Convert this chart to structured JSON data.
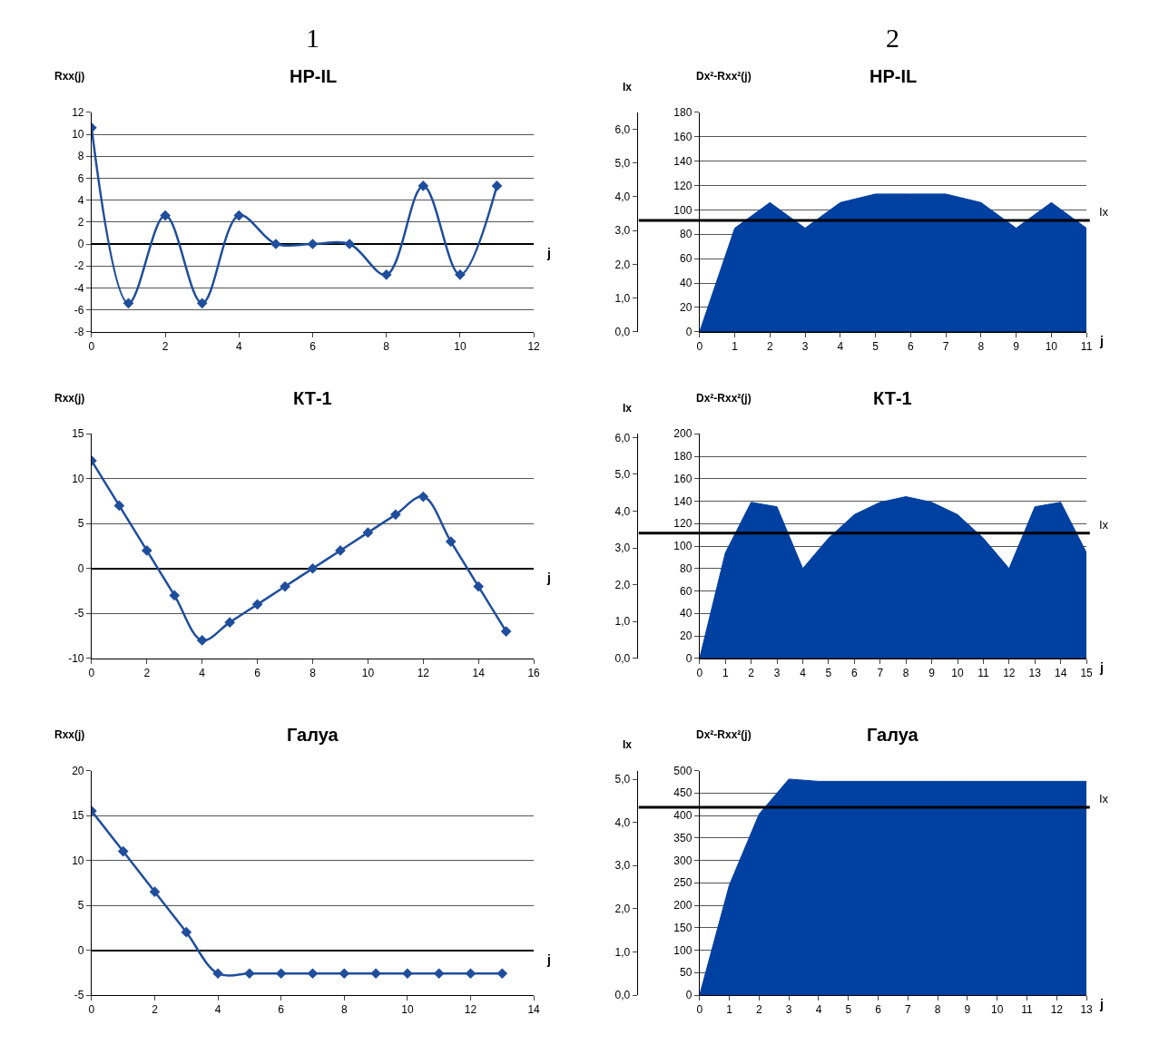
{
  "chart_data": [
    {
      "type": "line",
      "title": "HP-IL",
      "xlabel": "j",
      "ylabel": "Rxx(j)",
      "annotations": [
        "1"
      ],
      "x": [
        0,
        1,
        2,
        3,
        4,
        5,
        6,
        7,
        8,
        9,
        10,
        11
      ],
      "series": [
        {
          "color": "#1f4e9c",
          "values": [
            10.6,
            -5.4,
            2.6,
            -5.4,
            2.6,
            0,
            0,
            0,
            -2.8,
            5.3,
            -2.8,
            5.3
          ]
        }
      ],
      "xlim": [
        0,
        12
      ],
      "xticks": [
        0,
        2,
        4,
        6,
        8,
        10,
        12
      ],
      "ylim": [
        -8,
        12
      ],
      "yticks": [
        -8,
        -6,
        -4,
        -2,
        0,
        2,
        4,
        6,
        8,
        10,
        12
      ],
      "grid": "y",
      "marker": "diamond",
      "line_style": "solid"
    },
    {
      "type": "area",
      "title": "HP-IL",
      "xlabel": "j",
      "ylabel": "Dx²-Rxx²(j)",
      "y2label": "Ix",
      "annotations": [
        "2"
      ],
      "x": [
        0,
        1,
        2,
        3,
        4,
        5,
        6,
        7,
        8,
        9,
        10,
        11
      ],
      "series": [
        {
          "color": "#0040a0",
          "values": [
            0,
            85,
            106,
            85,
            106,
            113,
            113,
            113,
            106,
            85,
            106,
            85
          ]
        }
      ],
      "xlim": [
        0,
        11
      ],
      "xticks": [
        0,
        1,
        2,
        3,
        4,
        5,
        6,
        7,
        8,
        9,
        10,
        11
      ],
      "ylim": [
        0,
        180
      ],
      "yticks": [
        0,
        20,
        40,
        60,
        80,
        100,
        120,
        140,
        160,
        180
      ],
      "y2lim": [
        0,
        6.5
      ],
      "y2ticks": [
        {
          "value": 0,
          "label": "0,0"
        },
        {
          "value": 1,
          "label": "1,0"
        },
        {
          "value": 2,
          "label": "2,0"
        },
        {
          "value": 3,
          "label": "3,0"
        },
        {
          "value": 4,
          "label": "4,0"
        },
        {
          "value": 5,
          "label": "5,0"
        },
        {
          "value": 6,
          "label": "6,0"
        }
      ],
      "ref_lines": [
        {
          "axis": "y2",
          "value": 3.3,
          "label": "Ix",
          "color": "#000000"
        }
      ],
      "grid": "y"
    },
    {
      "type": "line",
      "title": "КТ-1",
      "xlabel": "j",
      "ylabel": "Rxx(j)",
      "x": [
        0,
        1,
        2,
        3,
        4,
        5,
        6,
        7,
        8,
        9,
        10,
        11,
        12,
        13,
        14,
        15
      ],
      "series": [
        {
          "color": "#1f4e9c",
          "values": [
            12,
            7,
            2,
            -3,
            -8,
            -6,
            -4,
            -2,
            0,
            2,
            4,
            6,
            8,
            3,
            -2,
            -7
          ]
        }
      ],
      "xlim": [
        0,
        16
      ],
      "xticks": [
        0,
        2,
        4,
        6,
        8,
        10,
        12,
        14,
        16
      ],
      "ylim": [
        -10,
        15
      ],
      "yticks": [
        -10,
        -5,
        0,
        5,
        10,
        15
      ],
      "grid": "y",
      "marker": "diamond",
      "line_style": "solid"
    },
    {
      "type": "area",
      "title": "КТ-1",
      "xlabel": "j",
      "ylabel": "Dx²-Rxx²(j)",
      "y2label": "Ix",
      "x": [
        0,
        1,
        2,
        3,
        4,
        5,
        6,
        7,
        8,
        9,
        10,
        11,
        12,
        13,
        14,
        15
      ],
      "series": [
        {
          "color": "#0040a0",
          "values": [
            0,
            94,
            139,
            135,
            80,
            107,
            128,
            139,
            144,
            139,
            128,
            107,
            80,
            135,
            139,
            94
          ]
        }
      ],
      "xlim": [
        0,
        15
      ],
      "xticks": [
        0,
        1,
        2,
        3,
        4,
        5,
        6,
        7,
        8,
        9,
        10,
        11,
        12,
        13,
        14,
        15
      ],
      "ylim": [
        0,
        200
      ],
      "yticks": [
        0,
        20,
        40,
        60,
        80,
        100,
        120,
        140,
        160,
        180,
        200
      ],
      "y2lim": [
        0,
        6.1
      ],
      "y2ticks": [
        {
          "value": 0,
          "label": "0,0"
        },
        {
          "value": 1,
          "label": "1,0"
        },
        {
          "value": 2,
          "label": "2,0"
        },
        {
          "value": 3,
          "label": "3,0"
        },
        {
          "value": 4,
          "label": "4,0"
        },
        {
          "value": 5,
          "label": "5,0"
        },
        {
          "value": 6,
          "label": "6,0"
        }
      ],
      "ref_lines": [
        {
          "axis": "y2",
          "value": 3.4,
          "label": "Ix",
          "color": "#000000"
        }
      ],
      "grid": "y"
    },
    {
      "type": "line",
      "title": "Галуа",
      "xlabel": "j",
      "ylabel": "Rxx(j)",
      "x": [
        0,
        1,
        2,
        3,
        4,
        5,
        6,
        7,
        8,
        9,
        10,
        11,
        12,
        13
      ],
      "series": [
        {
          "color": "#1f4e9c",
          "values": [
            15.5,
            11,
            6.5,
            2,
            -2.6,
            -2.6,
            -2.6,
            -2.6,
            -2.6,
            -2.6,
            -2.6,
            -2.6,
            -2.6,
            -2.6
          ]
        }
      ],
      "xlim": [
        0,
        14
      ],
      "xticks": [
        0,
        2,
        4,
        6,
        8,
        10,
        12,
        14
      ],
      "ylim": [
        -5,
        20
      ],
      "yticks": [
        -5,
        0,
        5,
        10,
        15,
        20
      ],
      "grid": "y",
      "marker": "diamond",
      "line_style": "solid"
    },
    {
      "type": "area",
      "title": "Галуа",
      "xlabel": "j",
      "ylabel": "Dx²-Rxx²(j)",
      "y2label": "Ix",
      "x": [
        0,
        1,
        2,
        3,
        4,
        5,
        6,
        7,
        8,
        9,
        10,
        11,
        12,
        13
      ],
      "series": [
        {
          "color": "#0040a0",
          "values": [
            0,
            245,
            403,
            481,
            476,
            476,
            476,
            476,
            476,
            476,
            476,
            476,
            476,
            476
          ]
        }
      ],
      "xlim": [
        0,
        13
      ],
      "xticks": [
        0,
        1,
        2,
        3,
        4,
        5,
        6,
        7,
        8,
        9,
        10,
        11,
        12,
        13
      ],
      "ylim": [
        0,
        500
      ],
      "yticks": [
        0,
        50,
        100,
        150,
        200,
        250,
        300,
        350,
        400,
        450,
        500
      ],
      "y2lim": [
        0,
        5.2
      ],
      "y2ticks": [
        {
          "value": 0,
          "label": "0,0"
        },
        {
          "value": 1,
          "label": "1,0"
        },
        {
          "value": 2,
          "label": "2,0"
        },
        {
          "value": 3,
          "label": "3,0"
        },
        {
          "value": 4,
          "label": "4,0"
        },
        {
          "value": 5,
          "label": "5,0"
        }
      ],
      "ref_lines": [
        {
          "axis": "y2",
          "value": 4.35,
          "label": "Ix",
          "color": "#000000"
        }
      ],
      "grid": "y"
    }
  ]
}
